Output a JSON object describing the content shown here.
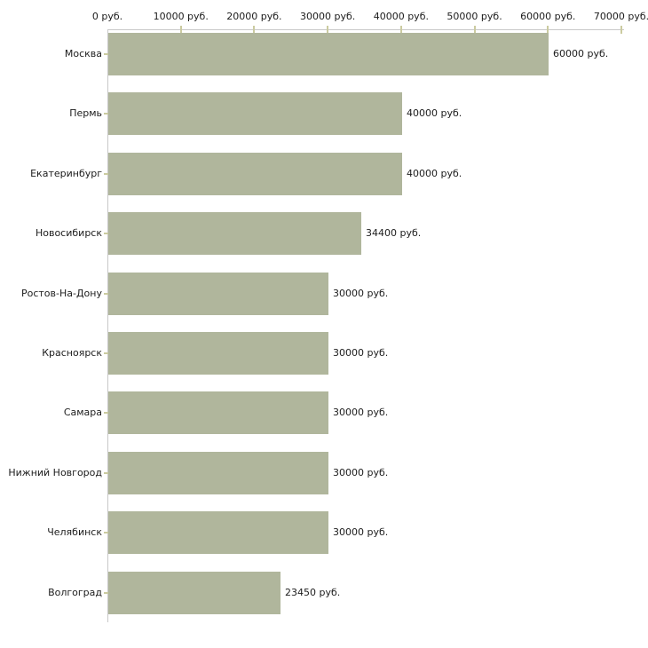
{
  "chart_data": {
    "type": "bar",
    "orientation": "horizontal",
    "title": "",
    "unit": "руб.",
    "categories": [
      "Москва",
      "Пермь",
      "Екатеринбург",
      "Новосибирск",
      "Ростов-На-Дону",
      "Красноярск",
      "Самара",
      "Нижний Новгород",
      "Челябинск",
      "Волгоград"
    ],
    "values": [
      60000,
      40000,
      40000,
      34400,
      30000,
      30000,
      30000,
      30000,
      30000,
      23450
    ],
    "value_labels": [
      "60000 руб.",
      "40000 руб.",
      "40000 руб.",
      "34400 руб.",
      "30000 руб.",
      "30000 руб.",
      "30000 руб.",
      "30000 руб.",
      "30000 руб.",
      "23450 руб."
    ],
    "x_axis": {
      "min": 0,
      "max": 70000,
      "tick_values": [
        0,
        10000,
        20000,
        30000,
        40000,
        50000,
        60000,
        70000
      ],
      "tick_labels": [
        "0 руб.",
        "10000 руб.",
        "20000 руб.",
        "30000 руб.",
        "40000 руб.",
        "50000 руб.",
        "60000 руб.",
        "70000 руб."
      ],
      "position": "top"
    },
    "grid": false,
    "legend": false,
    "colors": {
      "bar": "#b0b69c",
      "axis": "#c9c9c9",
      "tick": "#cbcba0",
      "text": "#1c1c1c",
      "background": "#ffffff"
    }
  }
}
